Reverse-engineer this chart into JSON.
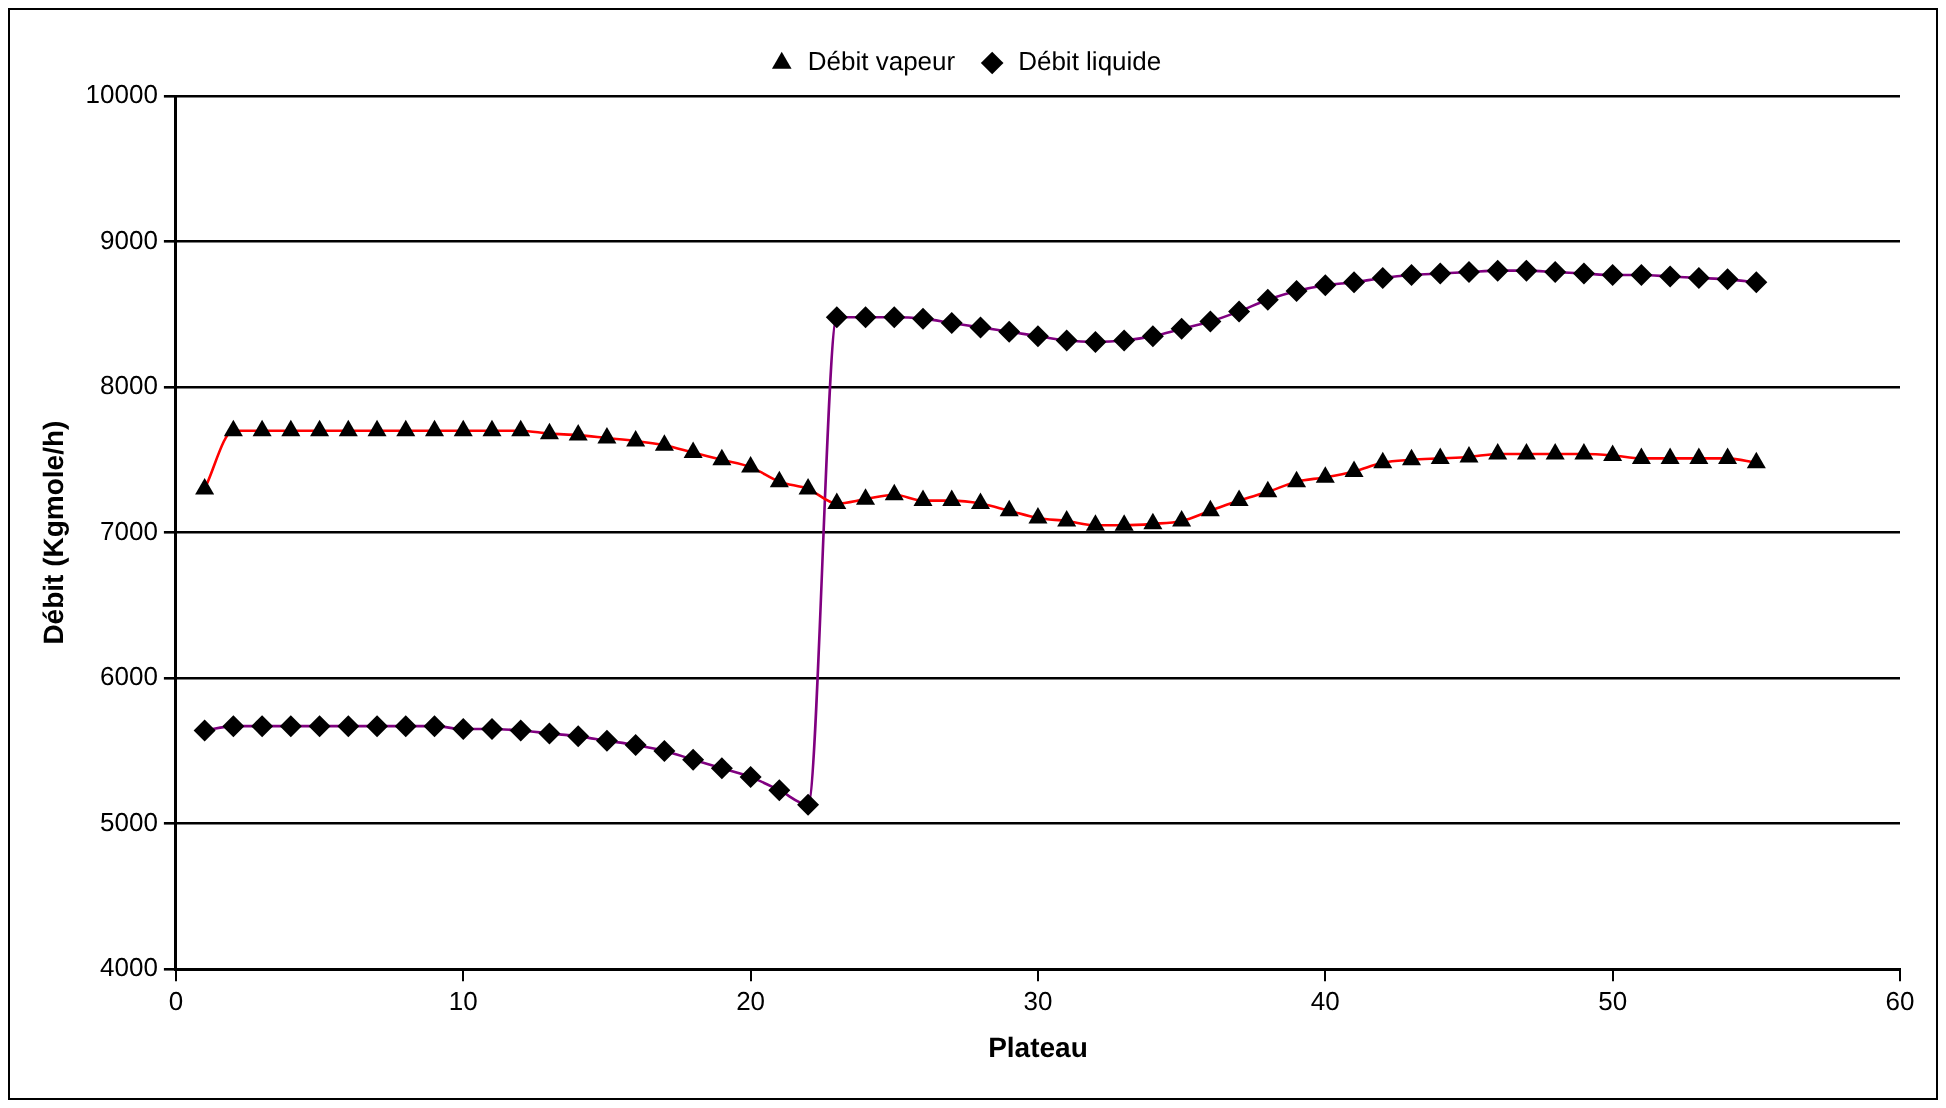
{
  "chart_data": {
    "type": "line",
    "xlabel": "Plateau",
    "ylabel": "Débit (Kgmole/h)",
    "x": [
      1,
      2,
      3,
      4,
      5,
      6,
      7,
      8,
      9,
      10,
      11,
      12,
      13,
      14,
      15,
      16,
      17,
      18,
      19,
      20,
      21,
      22,
      23,
      24,
      25,
      26,
      27,
      28,
      29,
      30,
      31,
      32,
      33,
      34,
      35,
      36,
      37,
      38,
      39,
      40,
      41,
      42,
      43,
      44,
      45,
      46,
      47,
      48,
      49,
      50,
      51,
      52,
      53,
      54,
      55
    ],
    "series": [
      {
        "name": "Débit vapeur",
        "color": "#ff0000",
        "marker": "triangle",
        "values": [
          7300,
          7700,
          7700,
          7700,
          7700,
          7700,
          7700,
          7700,
          7700,
          7700,
          7700,
          7700,
          7680,
          7670,
          7650,
          7630,
          7600,
          7550,
          7500,
          7450,
          7350,
          7300,
          7200,
          7230,
          7260,
          7220,
          7220,
          7200,
          7150,
          7100,
          7080,
          7050,
          7050,
          7060,
          7080,
          7150,
          7220,
          7280,
          7350,
          7380,
          7420,
          7480,
          7500,
          7510,
          7520,
          7540,
          7540,
          7540,
          7540,
          7530,
          7510,
          7510,
          7510,
          7510,
          7480
        ]
      },
      {
        "name": "Débit liquide",
        "color": "#800080",
        "marker": "diamond",
        "values": [
          5640,
          5670,
          5670,
          5670,
          5670,
          5670,
          5670,
          5670,
          5670,
          5650,
          5650,
          5640,
          5620,
          5600,
          5570,
          5540,
          5500,
          5440,
          5380,
          5320,
          5230,
          5130,
          8480,
          8480,
          8480,
          8470,
          8440,
          8410,
          8380,
          8350,
          8320,
          8310,
          8320,
          8350,
          8400,
          8450,
          8520,
          8600,
          8660,
          8700,
          8720,
          8750,
          8770,
          8780,
          8790,
          8800,
          8800,
          8790,
          8780,
          8770,
          8770,
          8760,
          8750,
          8740,
          8720
        ]
      }
    ],
    "xlim": [
      0,
      60
    ],
    "xticks": [
      0,
      10,
      20,
      30,
      40,
      50,
      60
    ],
    "ylim": [
      4000,
      10000
    ],
    "yticks": [
      4000,
      5000,
      6000,
      7000,
      8000,
      9000,
      10000
    ],
    "grid": "y",
    "legend": "top"
  }
}
